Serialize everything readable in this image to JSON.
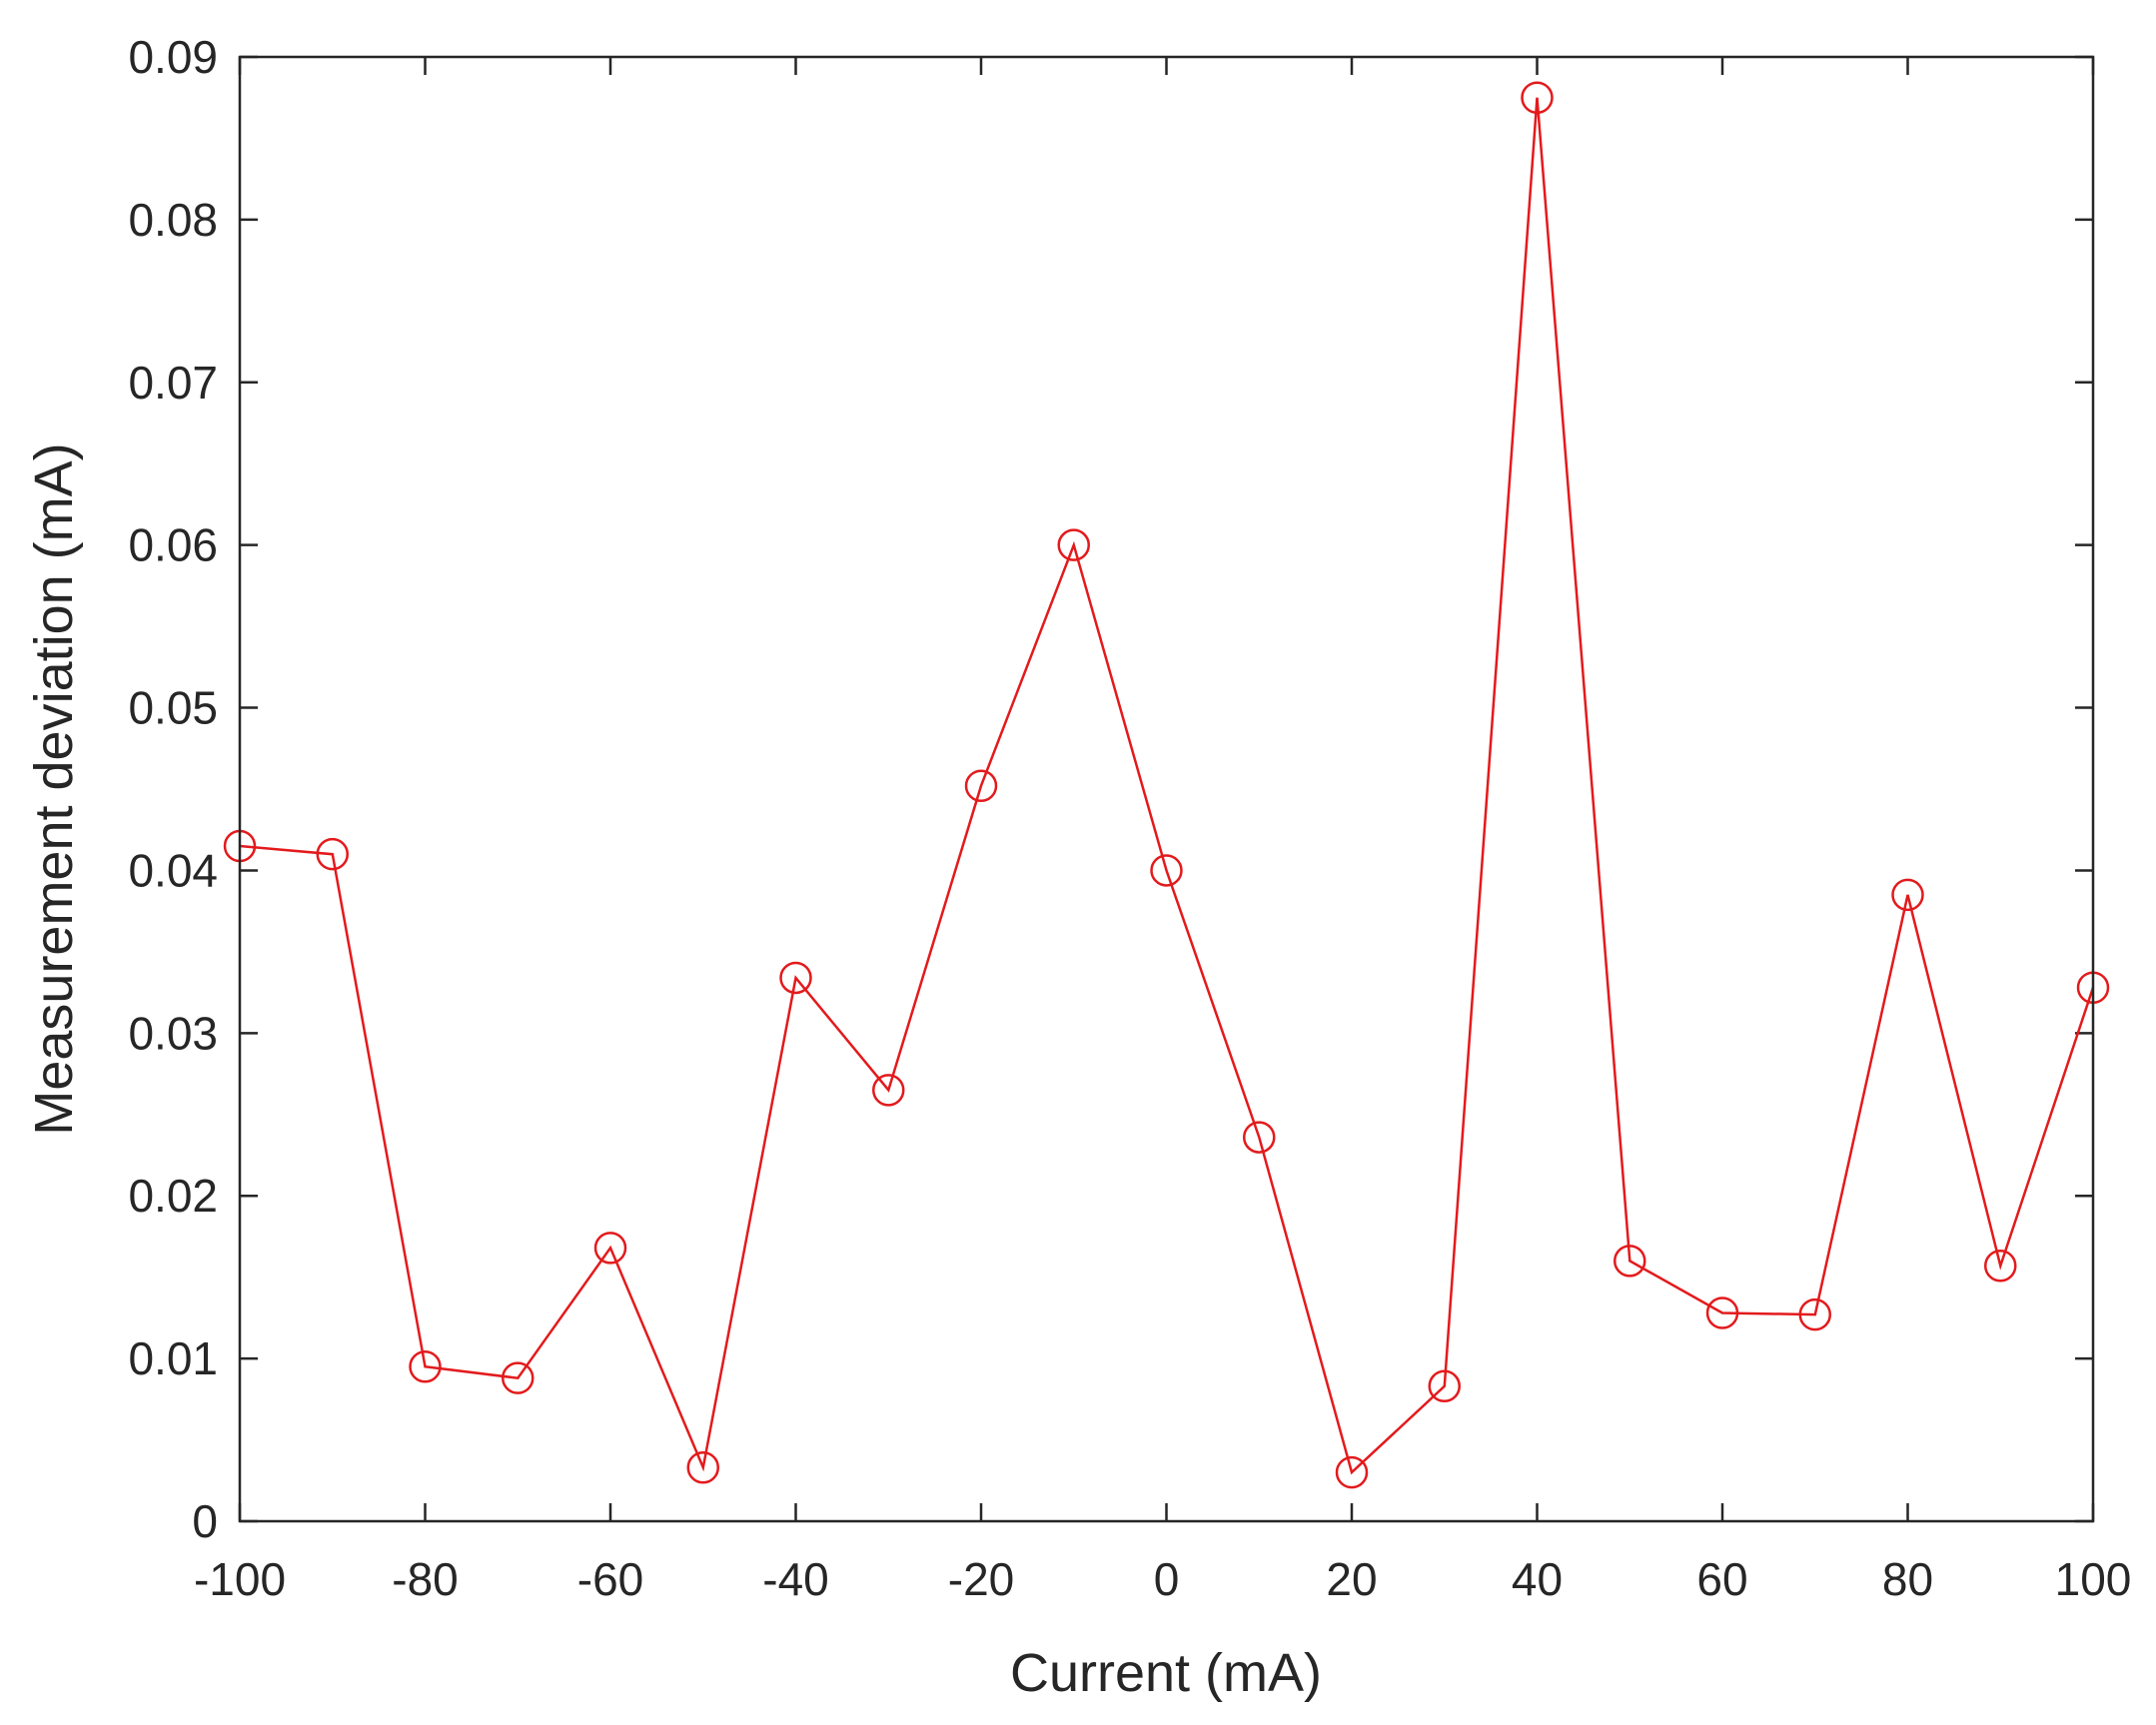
{
  "chart_data": {
    "type": "line",
    "title": "",
    "xlabel": "Current (mA)",
    "ylabel": "Measurement deviation (mA)",
    "xlim": [
      -100,
      100
    ],
    "ylim": [
      0,
      0.09
    ],
    "grid": false,
    "x_ticks": [
      -100,
      -80,
      -60,
      -40,
      -20,
      0,
      20,
      40,
      60,
      80,
      100
    ],
    "x_tick_labels": [
      "-100",
      "-80",
      "-60",
      "-40",
      "-20",
      "0",
      "20",
      "40",
      "60",
      "80",
      "100"
    ],
    "y_ticks": [
      0,
      0.01,
      0.02,
      0.03,
      0.04,
      0.05,
      0.06,
      0.07,
      0.08,
      0.09
    ],
    "y_tick_labels": [
      "0",
      "0.01",
      "0.02",
      "0.03",
      "0.04",
      "0.05",
      "0.06",
      "0.07",
      "0.08",
      "0.09"
    ],
    "series": [
      {
        "color": "#e31a1c",
        "marker": "circle",
        "x": [
          -100,
          -90,
          -80,
          -70,
          -60,
          -50,
          -40,
          -30,
          -20,
          -10,
          0,
          10,
          20,
          30,
          40,
          50,
          60,
          70,
          80,
          90,
          100
        ],
        "y": [
          0.0415,
          0.041,
          0.0095,
          0.0088,
          0.0168,
          0.0033,
          0.0334,
          0.0265,
          0.0452,
          0.06,
          0.04,
          0.0236,
          0.003,
          0.0083,
          0.0875,
          0.016,
          0.0128,
          0.0127,
          0.0385,
          0.0157,
          0.0328
        ]
      }
    ]
  }
}
